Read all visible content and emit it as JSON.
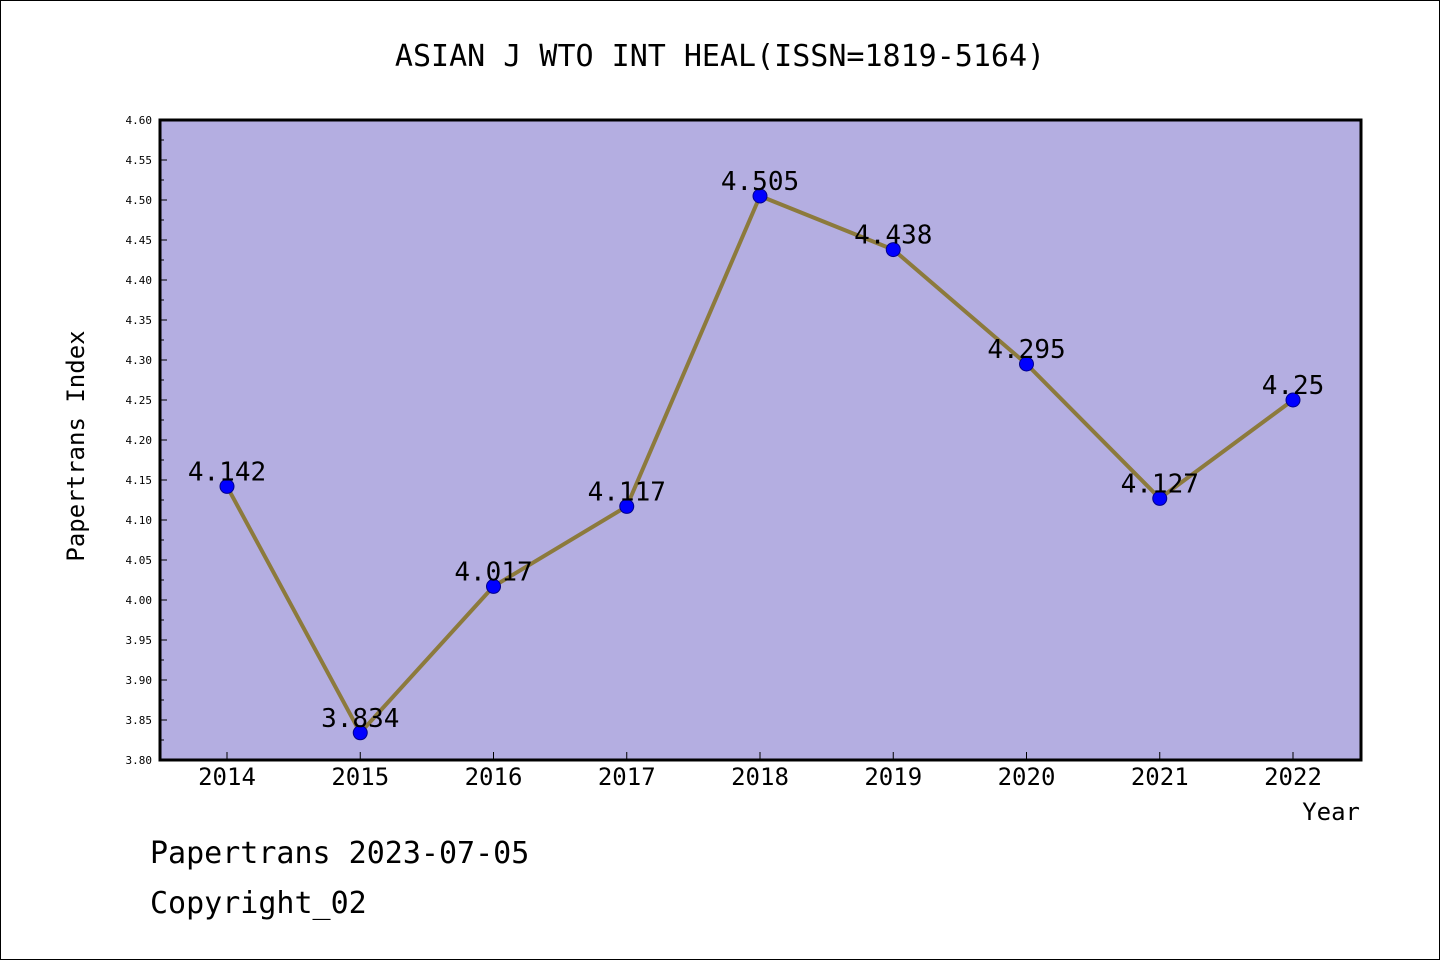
{
  "chart_data": {
    "type": "line",
    "title": "ASIAN J WTO INT HEAL(ISSN=1819-5164)",
    "xlabel": "Year",
    "ylabel": "Papertrans Index",
    "categories": [
      "2014",
      "2015",
      "2016",
      "2017",
      "2018",
      "2019",
      "2020",
      "2021",
      "2022"
    ],
    "values": [
      4.142,
      3.834,
      4.017,
      4.117,
      4.505,
      4.438,
      4.295,
      4.127,
      4.25
    ],
    "data_labels": [
      "4.142",
      "3.834",
      "4.017",
      "4.117",
      "4.505",
      "4.438",
      "4.295",
      "4.127",
      "4.25"
    ],
    "ylim": [
      3.8,
      4.6
    ],
    "yticks": [
      "3.80",
      "3.85",
      "3.90",
      "3.95",
      "4.00",
      "4.05",
      "4.10",
      "4.15",
      "4.20",
      "4.25",
      "4.30",
      "4.35",
      "4.40",
      "4.45",
      "4.50",
      "4.55",
      "4.60"
    ],
    "grid": false,
    "colors": {
      "plot_background": "#b4aee1",
      "line": "#8c7a3c",
      "marker": "#0000ff"
    }
  },
  "footer": {
    "source": "Papertrans 2023-07-05",
    "copyright": "Copyright_02"
  }
}
